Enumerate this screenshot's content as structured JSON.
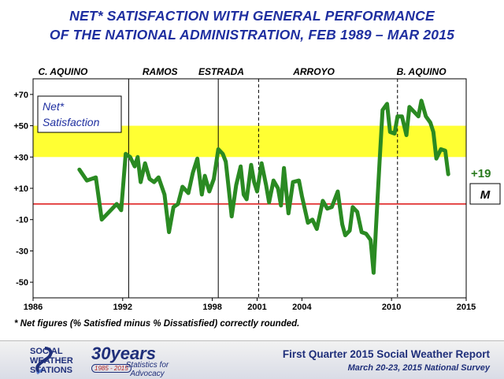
{
  "title_line1": "NET* SATISFACTION WITH GENERAL PERFORMANCE",
  "title_line2": "OF THE NATIONAL ADMINISTRATION, FEB 1989 – MAR 2015",
  "footnote": "* Net figures (% Satisfied minus % Dissatisfied) correctly rounded.",
  "footer": {
    "org_line1": "SOCIAL",
    "org_line2": "WEATHER",
    "org_line3": "STATIONS",
    "years_big": "30years",
    "years_range": "1985 - 2015",
    "years_sub": "Statistics for Advocacy",
    "report_title": "First Quarter 2015 Social Weather Report",
    "report_sub": "March 20-23, 2015 National Survey"
  },
  "chart_data": {
    "type": "line",
    "ylabel": "",
    "xlabel": "",
    "xlim": [
      1986,
      2015
    ],
    "ylim": [
      -60,
      80
    ],
    "y_ticks": [
      "+70",
      "+50",
      "+30",
      "+10",
      "-10",
      "-30",
      "-50"
    ],
    "y_tick_values": [
      70,
      50,
      30,
      10,
      -10,
      -30,
      -50
    ],
    "x_ticks": [
      "1986",
      "1992",
      "1998",
      "2001",
      "2004",
      "2010",
      "2015"
    ],
    "x_tick_values": [
      1986,
      1992,
      1998,
      2001,
      2004,
      2010,
      2015
    ],
    "presidents": [
      {
        "name": "C. AQUINO",
        "x": 1988.0,
        "end": 1992.4
      },
      {
        "name": "RAMOS",
        "x": 1994.5,
        "end": 1998.4
      },
      {
        "name": "ESTRADA",
        "x": 1998.6,
        "end": 2001.1
      },
      {
        "name": "ARROYO",
        "x": 2004.8,
        "end": 2010.4
      },
      {
        "name": "B. AQUINO",
        "x": 2012.0,
        "end": null
      }
    ],
    "band_range": [
      30,
      50
    ],
    "zero_line": 0,
    "legend_label_line1": "Net*",
    "legend_label_line2": "Satisfaction",
    "last_value_label": "+19",
    "last_value_note": "M",
    "series": [
      {
        "color": "#2a8a22",
        "points": [
          [
            1989.1,
            22
          ],
          [
            1989.6,
            15
          ],
          [
            1990.2,
            17
          ],
          [
            1990.6,
            -10
          ],
          [
            1991.1,
            -5
          ],
          [
            1991.6,
            0
          ],
          [
            1991.9,
            -4
          ],
          [
            1992.2,
            32
          ],
          [
            1992.5,
            30
          ],
          [
            1992.8,
            24
          ],
          [
            1993.0,
            30
          ],
          [
            1993.2,
            14
          ],
          [
            1993.5,
            26
          ],
          [
            1993.8,
            16
          ],
          [
            1994.1,
            14
          ],
          [
            1994.4,
            17
          ],
          [
            1994.8,
            6
          ],
          [
            1995.1,
            -18
          ],
          [
            1995.4,
            -2
          ],
          [
            1995.7,
            0
          ],
          [
            1996.0,
            11
          ],
          [
            1996.4,
            7
          ],
          [
            1996.7,
            20
          ],
          [
            1997.0,
            29
          ],
          [
            1997.3,
            6
          ],
          [
            1997.5,
            18
          ],
          [
            1997.8,
            8
          ],
          [
            1998.1,
            16
          ],
          [
            1998.4,
            35
          ],
          [
            1998.7,
            32
          ],
          [
            1998.9,
            27
          ],
          [
            1999.1,
            10
          ],
          [
            1999.3,
            -8
          ],
          [
            1999.6,
            12
          ],
          [
            1999.9,
            24
          ],
          [
            2000.1,
            6
          ],
          [
            2000.3,
            3
          ],
          [
            2000.6,
            25
          ],
          [
            2000.8,
            14
          ],
          [
            2001.0,
            8
          ],
          [
            2001.3,
            26
          ],
          [
            2001.6,
            12
          ],
          [
            2001.8,
            1
          ],
          [
            2002.1,
            15
          ],
          [
            2002.4,
            10
          ],
          [
            2002.6,
            -1
          ],
          [
            2002.8,
            23
          ],
          [
            2003.1,
            -6
          ],
          [
            2003.4,
            14
          ],
          [
            2003.8,
            15
          ],
          [
            2004.0,
            5
          ],
          [
            2004.4,
            -12
          ],
          [
            2004.7,
            -10
          ],
          [
            2005.0,
            -16
          ],
          [
            2005.4,
            2
          ],
          [
            2005.7,
            -3
          ],
          [
            2006.0,
            -2
          ],
          [
            2006.4,
            8
          ],
          [
            2006.7,
            -13
          ],
          [
            2006.9,
            -20
          ],
          [
            2007.2,
            -17
          ],
          [
            2007.4,
            -2
          ],
          [
            2007.7,
            -5
          ],
          [
            2008.0,
            -18
          ],
          [
            2008.3,
            -19
          ],
          [
            2008.6,
            -23
          ],
          [
            2008.8,
            -44
          ],
          [
            2009.0,
            -8
          ],
          [
            2009.2,
            27
          ],
          [
            2009.4,
            60
          ],
          [
            2009.7,
            64
          ],
          [
            2009.9,
            46
          ],
          [
            2010.2,
            45
          ],
          [
            2010.4,
            56
          ],
          [
            2010.7,
            56
          ],
          [
            2011.0,
            44
          ],
          [
            2011.2,
            62
          ],
          [
            2011.5,
            59
          ],
          [
            2011.8,
            56
          ],
          [
            2012.0,
            66
          ],
          [
            2012.3,
            56
          ],
          [
            2012.6,
            52
          ],
          [
            2012.8,
            46
          ],
          [
            2013.0,
            29
          ],
          [
            2013.3,
            35
          ],
          [
            2013.6,
            34
          ],
          [
            2013.8,
            19
          ]
        ]
      }
    ]
  }
}
